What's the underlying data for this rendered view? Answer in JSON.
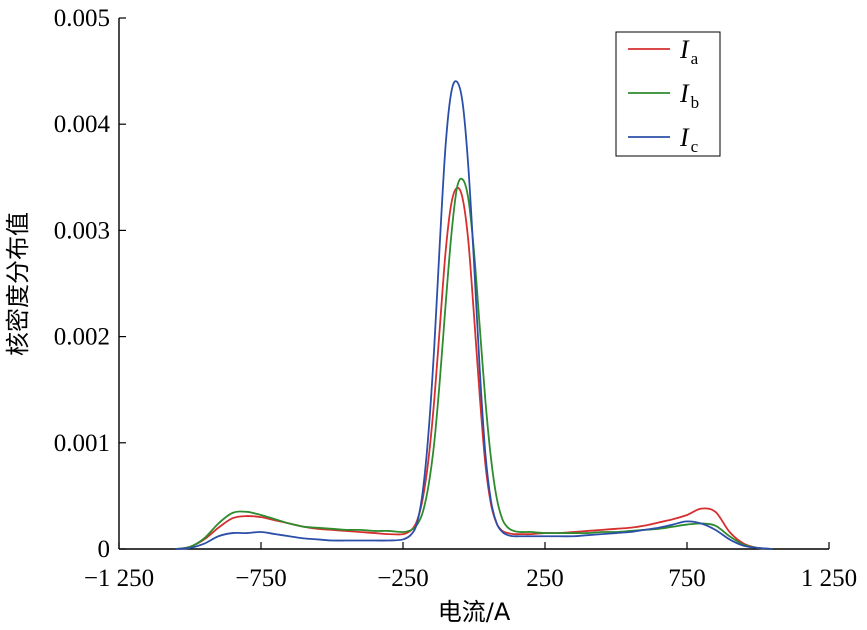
{
  "chart_data": {
    "type": "line",
    "xlabel": "电流/A",
    "ylabel": "核密度分布值",
    "xlim": [
      -1250,
      1250
    ],
    "ylim": [
      0,
      0.005
    ],
    "xticks": [
      -1250,
      -750,
      -250,
      250,
      750,
      1250
    ],
    "xtick_labels": [
      "−1 250",
      "−750",
      "−250",
      "250",
      "750",
      "1 250"
    ],
    "yticks": [
      0,
      0.001,
      0.002,
      0.003,
      0.004,
      0.005
    ],
    "ytick_labels": [
      "0",
      "0.001",
      "0.002",
      "0.003",
      "0.004",
      "0.005"
    ],
    "grid": false,
    "legend_position": "top-right",
    "series": [
      {
        "name": "Ia",
        "legend_main": "I",
        "legend_sub": "a",
        "color": "#d62f2f",
        "x": [
          -1050,
          -1000,
          -950,
          -900,
          -850,
          -800,
          -750,
          -700,
          -650,
          -600,
          -550,
          -500,
          -450,
          -400,
          -350,
          -300,
          -250,
          -220,
          -200,
          -180,
          -160,
          -140,
          -120,
          -100,
          -80,
          -60,
          -40,
          -20,
          0,
          20,
          40,
          60,
          80,
          100,
          120,
          140,
          160,
          180,
          200,
          250,
          300,
          350,
          400,
          450,
          500,
          550,
          600,
          650,
          700,
          750,
          800,
          850,
          900,
          950,
          1000,
          1050
        ],
        "y": [
          0,
          2e-05,
          9e-05,
          0.0002,
          0.00029,
          0.00031,
          0.0003,
          0.00027,
          0.00024,
          0.00021,
          0.00019,
          0.00018,
          0.00017,
          0.00016,
          0.00015,
          0.00014,
          0.00014,
          0.00018,
          0.00027,
          0.00048,
          0.00085,
          0.0014,
          0.0021,
          0.0028,
          0.00325,
          0.0034,
          0.0033,
          0.0029,
          0.0022,
          0.00145,
          0.0008,
          0.00042,
          0.00024,
          0.00017,
          0.00015,
          0.00014,
          0.00014,
          0.00014,
          0.00014,
          0.00015,
          0.00015,
          0.00016,
          0.00017,
          0.00018,
          0.00019,
          0.0002,
          0.00022,
          0.00025,
          0.00028,
          0.00032,
          0.00038,
          0.00035,
          0.00016,
          5e-05,
          1e-05,
          0
        ]
      },
      {
        "name": "Ib",
        "legend_main": "I",
        "legend_sub": "b",
        "color": "#2e8b2e",
        "x": [
          -1050,
          -1000,
          -950,
          -900,
          -850,
          -800,
          -750,
          -700,
          -650,
          -600,
          -550,
          -500,
          -450,
          -400,
          -350,
          -300,
          -250,
          -220,
          -200,
          -180,
          -160,
          -140,
          -120,
          -100,
          -80,
          -60,
          -40,
          -20,
          0,
          20,
          40,
          60,
          80,
          100,
          120,
          140,
          160,
          180,
          200,
          250,
          300,
          350,
          400,
          450,
          500,
          550,
          600,
          650,
          700,
          750,
          800,
          850,
          900,
          950,
          1000,
          1050
        ],
        "y": [
          0,
          2e-05,
          0.0001,
          0.00024,
          0.00034,
          0.00035,
          0.00032,
          0.00028,
          0.00024,
          0.00021,
          0.0002,
          0.00019,
          0.00018,
          0.00018,
          0.00017,
          0.00017,
          0.00016,
          0.00018,
          0.00023,
          0.00035,
          0.0006,
          0.001,
          0.0016,
          0.0023,
          0.00295,
          0.0034,
          0.00348,
          0.0033,
          0.0028,
          0.0021,
          0.0014,
          0.00085,
          0.00048,
          0.00028,
          0.0002,
          0.00017,
          0.00016,
          0.00016,
          0.00016,
          0.00015,
          0.00015,
          0.00015,
          0.00015,
          0.00016,
          0.00016,
          0.00017,
          0.00018,
          0.00019,
          0.00021,
          0.00023,
          0.00024,
          0.00022,
          0.00012,
          4e-05,
          1e-05,
          0
        ]
      },
      {
        "name": "Ic",
        "legend_main": "I",
        "legend_sub": "c",
        "color": "#2b4fa8",
        "x": [
          -1050,
          -1000,
          -950,
          -900,
          -850,
          -800,
          -750,
          -700,
          -650,
          -600,
          -550,
          -500,
          -450,
          -400,
          -350,
          -300,
          -250,
          -220,
          -200,
          -180,
          -160,
          -140,
          -120,
          -100,
          -80,
          -60,
          -40,
          -20,
          0,
          20,
          40,
          60,
          80,
          100,
          120,
          140,
          160,
          180,
          200,
          250,
          300,
          350,
          400,
          450,
          500,
          550,
          600,
          650,
          700,
          750,
          800,
          850,
          900,
          950,
          1000,
          1050
        ],
        "y": [
          0,
          1e-05,
          5e-05,
          0.00012,
          0.00015,
          0.00015,
          0.00016,
          0.00014,
          0.00012,
          0.0001,
          9e-05,
          8e-05,
          8e-05,
          8e-05,
          8e-05,
          8e-05,
          9e-05,
          0.00014,
          0.00025,
          0.00055,
          0.0011,
          0.0019,
          0.0029,
          0.0038,
          0.0043,
          0.0044,
          0.0042,
          0.0036,
          0.0027,
          0.0017,
          0.0009,
          0.00045,
          0.00024,
          0.00016,
          0.00013,
          0.00012,
          0.00012,
          0.00012,
          0.00012,
          0.00012,
          0.00012,
          0.00012,
          0.00013,
          0.00014,
          0.00015,
          0.00016,
          0.00018,
          0.0002,
          0.00023,
          0.00026,
          0.00024,
          0.00018,
          9e-05,
          3e-05,
          1e-05,
          0
        ]
      }
    ]
  }
}
